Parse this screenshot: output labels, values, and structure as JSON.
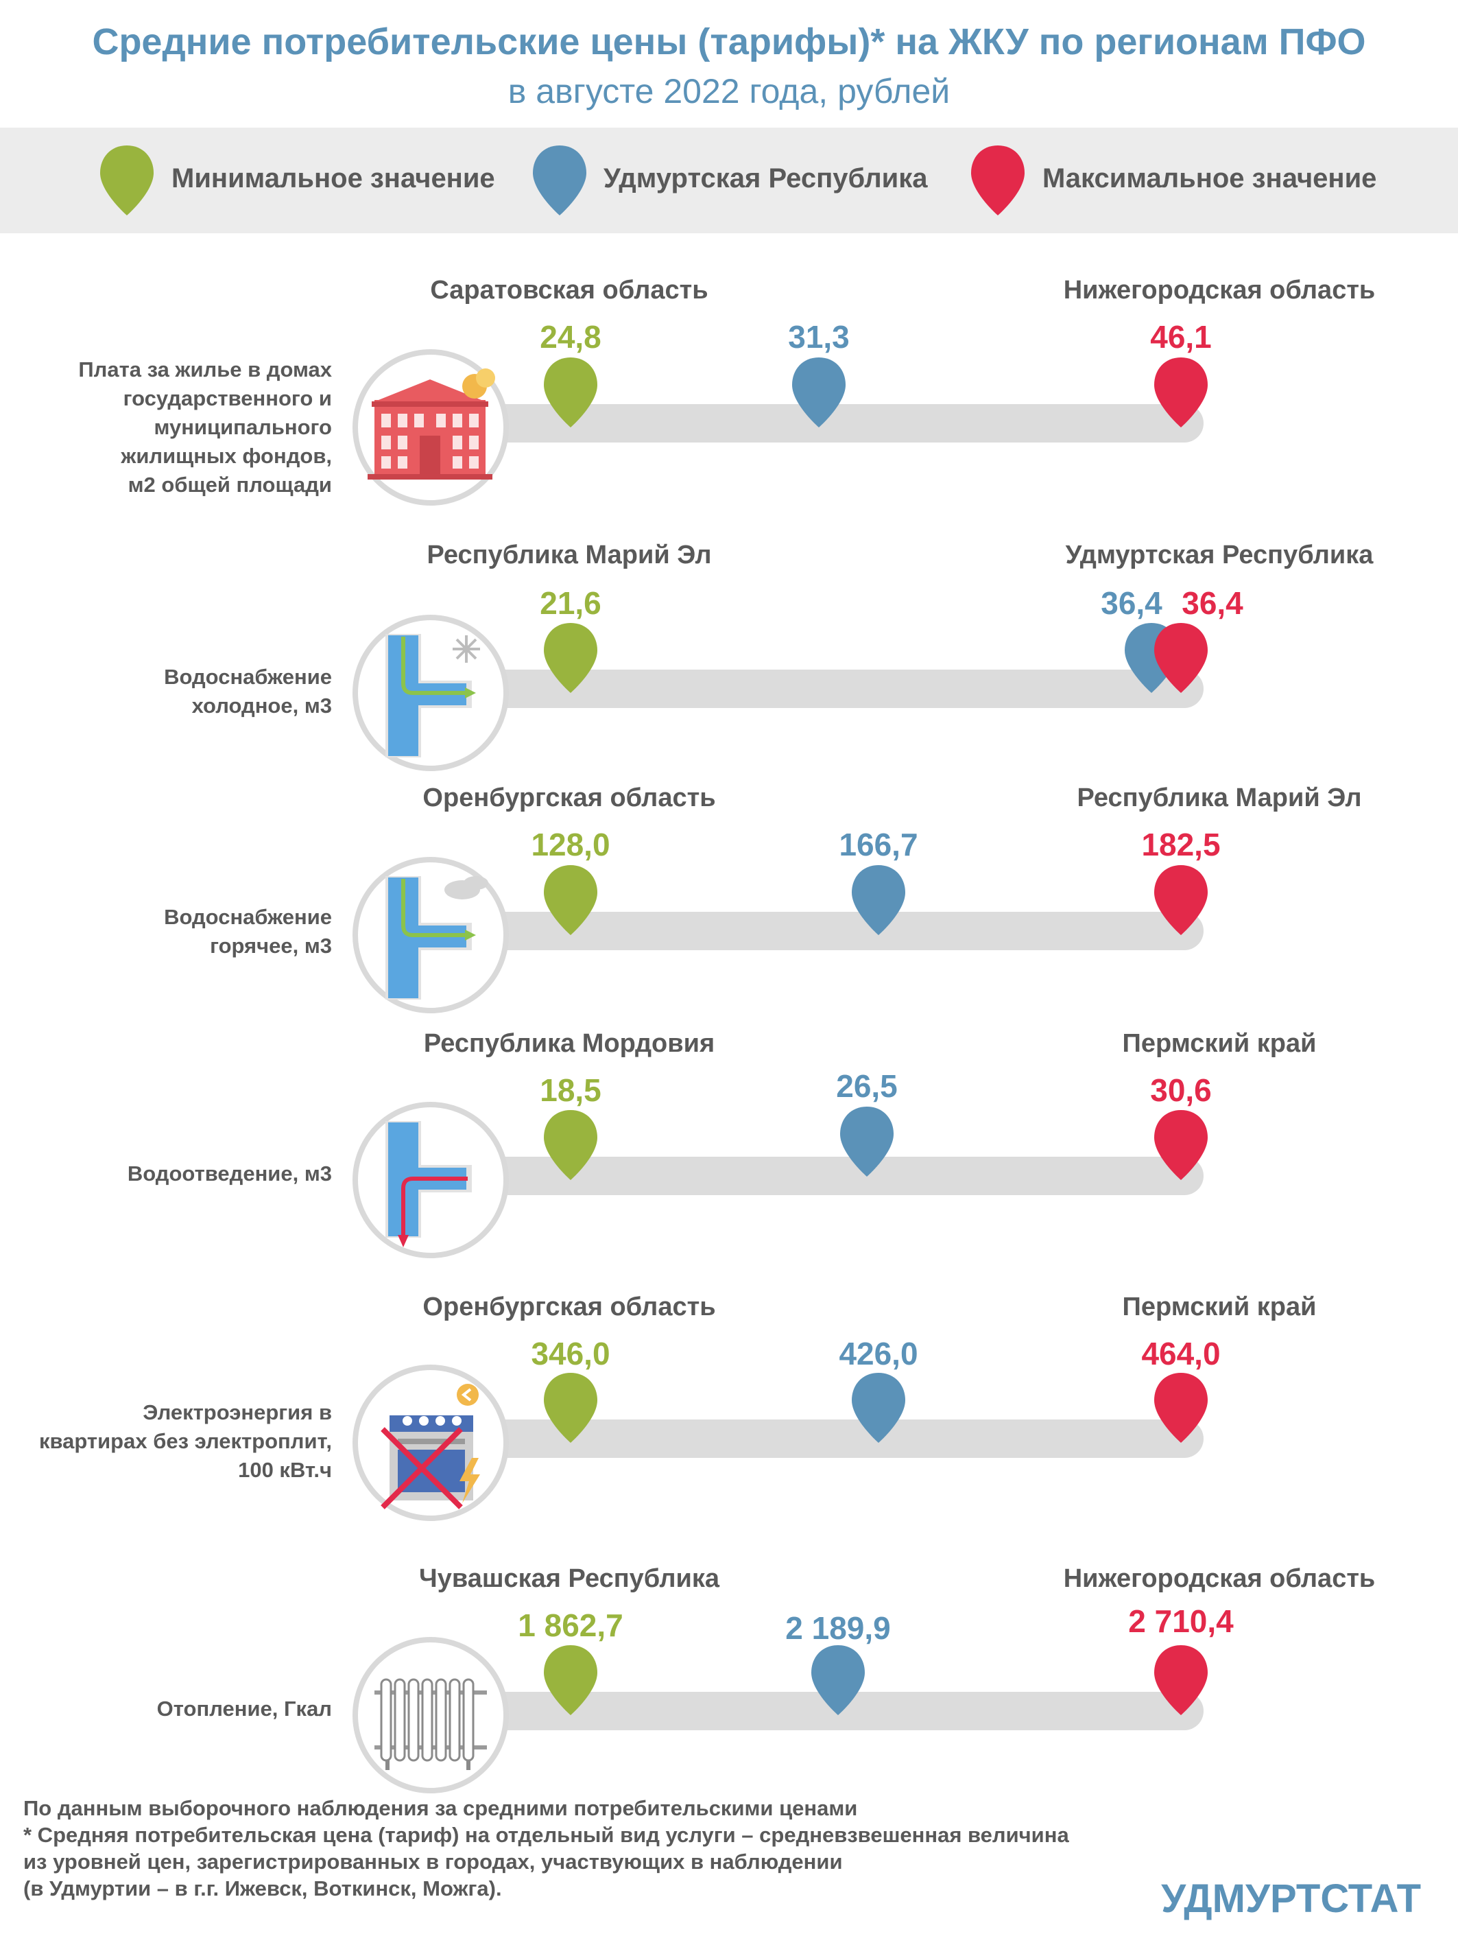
{
  "header": {
    "title": "Средние потребительские цены (тарифы)* на ЖКУ по регионам ПФО",
    "subtitle": "в августе 2022 года, рублей"
  },
  "legend": {
    "min_label": "Минимальное значение",
    "udm_label": "Удмуртская Республика",
    "max_label": "Максимальное значение"
  },
  "colors": {
    "min": "#99b43e",
    "udm": "#5b92b8",
    "max": "#e3294a",
    "bar": "#dcdcdc",
    "text": "#595959"
  },
  "rows": [
    {
      "label": "Плата за жилье в домах\nгосударственного и\nмуниципального\nжилищных фондов,\nм2 общей площади",
      "icon": "government-building-icon",
      "min_region": "Саратовская область",
      "max_region": "Нижегородская область",
      "min_value": "24,8",
      "udm_value": "31,3",
      "max_value": "46,1"
    },
    {
      "label": "Водоснабжение\nхолодное, м3",
      "icon": "cold-water-pipe-icon",
      "min_region": "Республика Марий Эл",
      "max_region": "Удмуртская Республика",
      "min_value": "21,6",
      "udm_value": "36,4",
      "max_value": "36,4"
    },
    {
      "label": "Водоснабжение\nгорячее, м3",
      "icon": "hot-water-pipe-icon",
      "min_region": "Оренбургская область",
      "max_region": "Республика Марий Эл",
      "min_value": "128,0",
      "udm_value": "166,7",
      "max_value": "182,5"
    },
    {
      "label": "Водоотведение, м3",
      "icon": "drainage-pipe-icon",
      "min_region": "Республика Мордовия",
      "max_region": "Пермский край",
      "min_value": "18,5",
      "udm_value": "26,5",
      "max_value": "30,6"
    },
    {
      "label": "Электроэнергия в\nквартирах без электроплит,\n100 кВт.ч",
      "icon": "crossed-stove-icon",
      "min_region": "Оренбургская область",
      "max_region": "Пермский край",
      "min_value": "346,0",
      "udm_value": "426,0",
      "max_value": "464,0"
    },
    {
      "label": "Отопление, Гкал",
      "icon": "radiator-icon",
      "min_region": "Чувашская Республика",
      "max_region": "Нижегородская область",
      "min_value": "1 862,7",
      "udm_value": "2 189,9",
      "max_value": "2 710,4"
    }
  ],
  "footer": {
    "line1": "По данным выборочного наблюдения за средними потребительскими ценами",
    "line2": "* Средняя потребительская цена (тариф) на отдельный вид услуги – средневзвешенная величина",
    "line3": "из уровней цен, зарегистрированных в городах, участвующих в наблюдении",
    "line4": "(в Удмуртии – в г.г. Ижевск, Воткинск, Можга)."
  },
  "brand": "УДМУРТСТАТ"
}
